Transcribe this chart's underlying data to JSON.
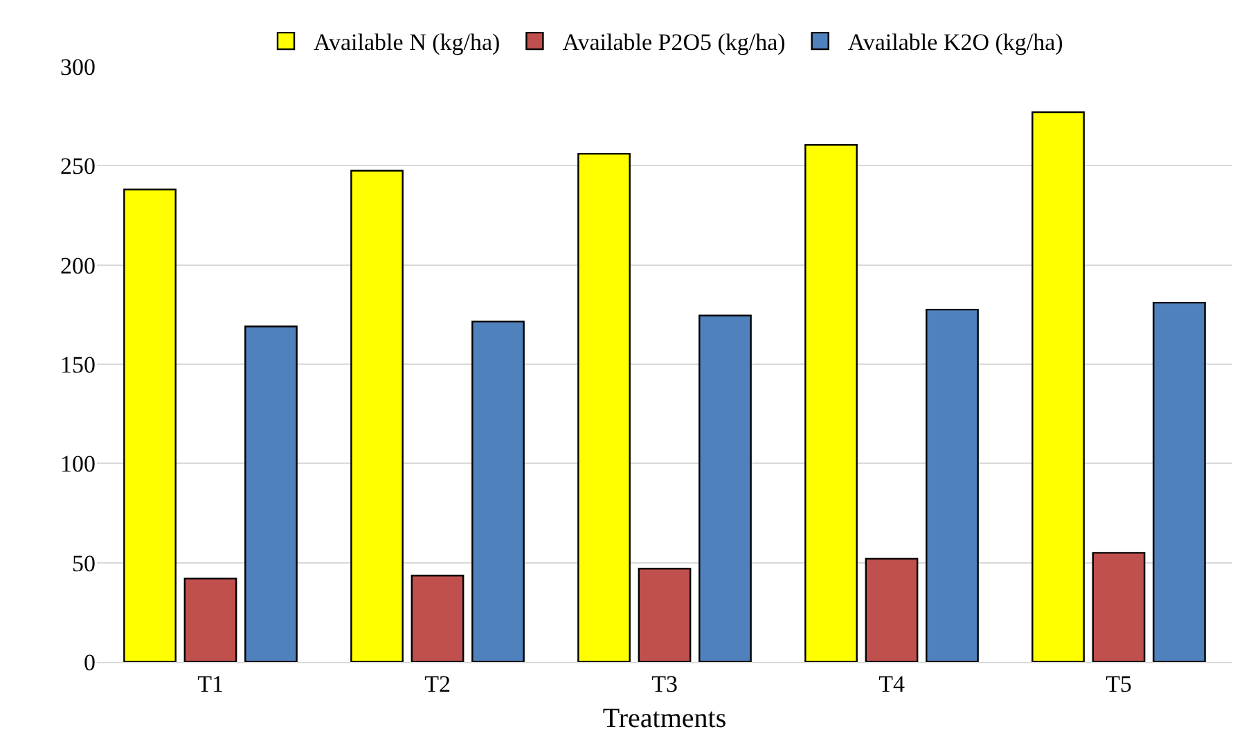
{
  "chart_data": {
    "type": "bar",
    "xlabel": "Treatments",
    "categories": [
      "T1",
      "T2",
      "T3",
      "T4",
      "T5"
    ],
    "series": [
      {
        "name": "Available N (kg/ha)",
        "color": "#ffff00",
        "values": [
          238,
          247.5,
          256,
          260.5,
          277
        ]
      },
      {
        "name": "Available P2O5 (kg/ha)",
        "color": "#c0504d",
        "values": [
          42,
          43.5,
          47,
          52,
          55
        ]
      },
      {
        "name": "Available K2O (kg/ha)",
        "color": "#4f81bd",
        "values": [
          169,
          171.5,
          174.5,
          177.5,
          181
        ]
      }
    ],
    "ylim": [
      0,
      300
    ],
    "yticks": [
      0,
      50,
      100,
      150,
      200,
      250,
      300
    ],
    "grid": "y",
    "legend": "top"
  }
}
